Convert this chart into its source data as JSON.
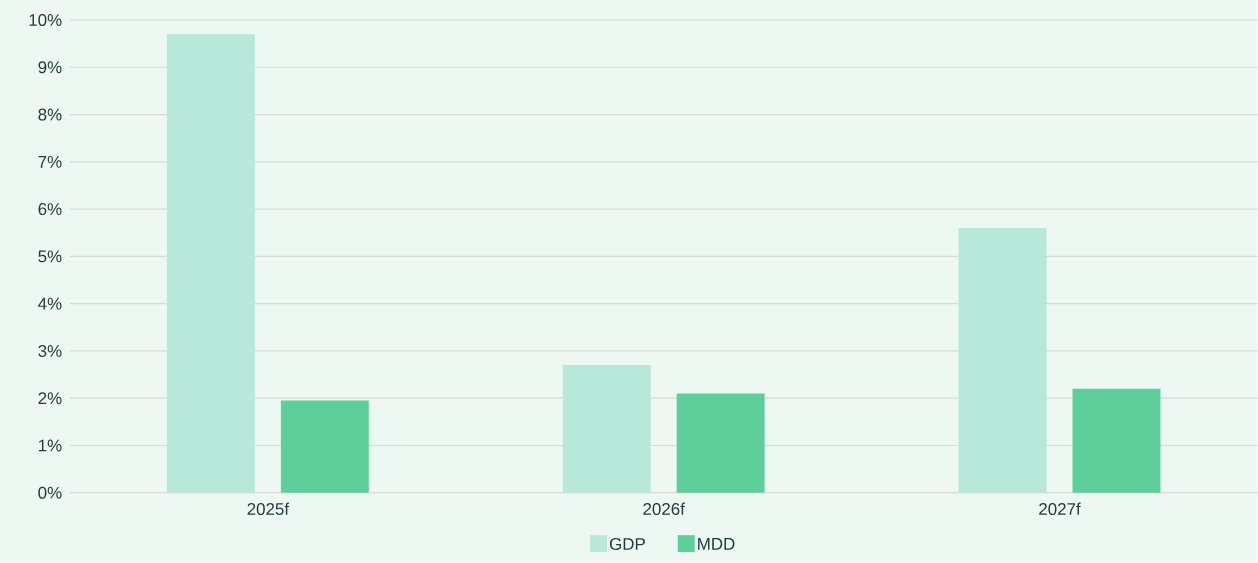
{
  "chart_data": {
    "type": "bar",
    "categories": [
      "2025f",
      "2026f",
      "2027f"
    ],
    "series": [
      {
        "name": "GDP",
        "color": "#b8e8da",
        "values": [
          9.7,
          2.7,
          5.6
        ]
      },
      {
        "name": "MDD",
        "color": "#5ecf9a",
        "values": [
          1.95,
          2.1,
          2.2
        ]
      }
    ],
    "ylim": [
      0,
      10
    ],
    "yticks": [
      {
        "value": 0,
        "label": "0%"
      },
      {
        "value": 1,
        "label": "1%"
      },
      {
        "value": 2,
        "label": "2%"
      },
      {
        "value": 3,
        "label": "3%"
      },
      {
        "value": 4,
        "label": "4%"
      },
      {
        "value": 5,
        "label": "5%"
      },
      {
        "value": 6,
        "label": "6%"
      },
      {
        "value": 7,
        "label": "7%"
      },
      {
        "value": 8,
        "label": "8%"
      },
      {
        "value": 9,
        "label": "9%"
      },
      {
        "value": 10,
        "label": "10%"
      }
    ],
    "grid": "y",
    "legend": "bottom"
  }
}
